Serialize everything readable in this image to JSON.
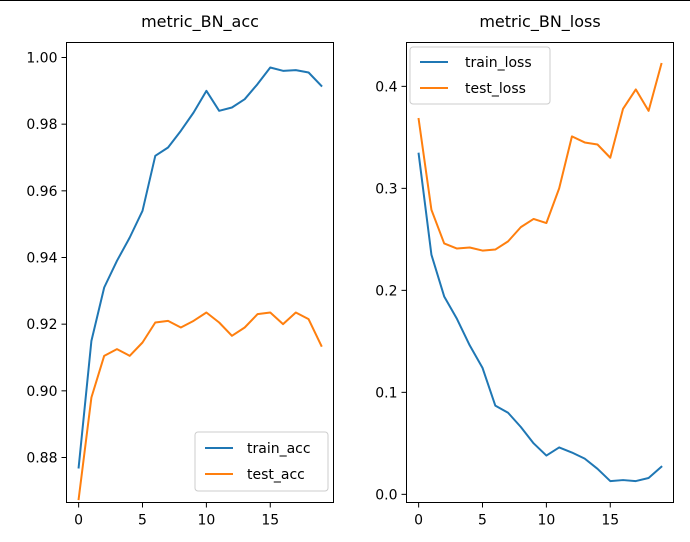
{
  "chart_data": [
    {
      "type": "line",
      "title": "metric_BN_acc",
      "xlabel": "",
      "ylabel": "",
      "xlim": [
        -0.95,
        19.95
      ],
      "ylim": [
        0.8665,
        1.0045
      ],
      "xticks": [
        0,
        5,
        10,
        15
      ],
      "xtick_labels": [
        "0",
        "5",
        "10",
        "15"
      ],
      "yticks": [
        0.88,
        0.9,
        0.92,
        0.94,
        0.96,
        0.98,
        1.0
      ],
      "ytick_labels": [
        "0.88",
        "0.90",
        "0.92",
        "0.94",
        "0.96",
        "0.98",
        "1.00"
      ],
      "grid": false,
      "legend_position": "lower-right",
      "x": [
        0,
        1,
        2,
        3,
        4,
        5,
        6,
        7,
        8,
        9,
        10,
        11,
        12,
        13,
        14,
        15,
        16,
        17,
        18,
        19
      ],
      "series": [
        {
          "name": "train_acc",
          "color": "#1f77b4",
          "values": [
            0.877,
            0.915,
            0.931,
            0.939,
            0.946,
            0.954,
            0.9705,
            0.973,
            0.978,
            0.9835,
            0.99,
            0.984,
            0.985,
            0.9875,
            0.992,
            0.997,
            0.996,
            0.9962,
            0.9955,
            0.9915
          ]
        },
        {
          "name": "test_acc",
          "color": "#ff7f0e",
          "values": [
            0.8675,
            0.898,
            0.9105,
            0.9125,
            0.9105,
            0.9145,
            0.9205,
            0.921,
            0.919,
            0.921,
            0.9235,
            0.9205,
            0.9165,
            0.919,
            0.923,
            0.9235,
            0.92,
            0.9235,
            0.9215,
            0.9135
          ]
        }
      ]
    },
    {
      "type": "line",
      "title": "metric_BN_loss",
      "xlabel": "",
      "ylabel": "",
      "xlim": [
        -0.95,
        19.95
      ],
      "ylim": [
        -0.008,
        0.443
      ],
      "xticks": [
        0,
        5,
        10,
        15
      ],
      "xtick_labels": [
        "0",
        "5",
        "10",
        "15"
      ],
      "yticks": [
        0.0,
        0.1,
        0.2,
        0.3,
        0.4
      ],
      "ytick_labels": [
        "0.0",
        "0.1",
        "0.2",
        "0.3",
        "0.4"
      ],
      "grid": false,
      "legend_position": "upper-left",
      "x": [
        0,
        1,
        2,
        3,
        4,
        5,
        6,
        7,
        8,
        9,
        10,
        11,
        12,
        13,
        14,
        15,
        16,
        17,
        18,
        19
      ],
      "series": [
        {
          "name": "train_loss",
          "color": "#1f77b4",
          "values": [
            0.334,
            0.235,
            0.194,
            0.172,
            0.146,
            0.124,
            0.087,
            0.08,
            0.066,
            0.05,
            0.038,
            0.046,
            0.041,
            0.035,
            0.025,
            0.013,
            0.014,
            0.013,
            0.016,
            0.027
          ]
        },
        {
          "name": "test_loss",
          "color": "#ff7f0e",
          "values": [
            0.368,
            0.279,
            0.246,
            0.241,
            0.242,
            0.239,
            0.24,
            0.248,
            0.262,
            0.27,
            0.266,
            0.3,
            0.351,
            0.345,
            0.343,
            0.33,
            0.378,
            0.397,
            0.376,
            0.422
          ]
        }
      ]
    }
  ]
}
